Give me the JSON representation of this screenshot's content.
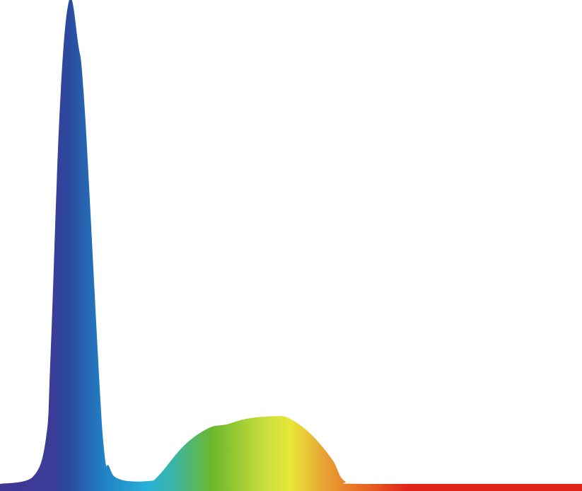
{
  "chart_data": {
    "type": "area",
    "title": "",
    "xlabel": "",
    "ylabel": "",
    "grid": false,
    "legend": "none",
    "xlim": [
      0,
      1
    ],
    "ylim": [
      0,
      1
    ],
    "x": [
      0,
      0.055,
      0.079,
      0.087,
      0.103,
      0.119,
      0.134,
      0.146,
      0.176,
      0.188,
      0.207,
      0.255,
      0.273,
      0.316,
      0.358,
      0.389,
      0.425,
      0.474,
      0.498,
      0.535,
      0.571,
      0.592,
      0.632,
      1
    ],
    "series": [
      {
        "values": [
          0,
          0.013,
          0.094,
          0.269,
          0.781,
          1,
          0.912,
          0.766,
          0.108,
          0.035,
          0.009,
          0.006,
          0.018,
          0.079,
          0.115,
          0.123,
          0.135,
          0.14,
          0.135,
          0.102,
          0.05,
          0.006,
          0,
          0
        ]
      }
    ],
    "fill_gradient": [
      {
        "at": 0.0,
        "color": "#423795"
      },
      {
        "at": 0.09,
        "color": "#3a3c98"
      },
      {
        "at": 0.12,
        "color": "#2a4b9f"
      },
      {
        "at": 0.18,
        "color": "#2183c6"
      },
      {
        "at": 0.255,
        "color": "#29b0d8"
      },
      {
        "at": 0.3,
        "color": "#3db5a2"
      },
      {
        "at": 0.365,
        "color": "#6cb82c"
      },
      {
        "at": 0.45,
        "color": "#c6dc3c"
      },
      {
        "at": 0.5,
        "color": "#e8e63a"
      },
      {
        "at": 0.56,
        "color": "#e8a032"
      },
      {
        "at": 0.63,
        "color": "#e86422"
      },
      {
        "at": 0.7,
        "color": "#e02418"
      },
      {
        "at": 1.0,
        "color": "#e02418"
      }
    ]
  }
}
